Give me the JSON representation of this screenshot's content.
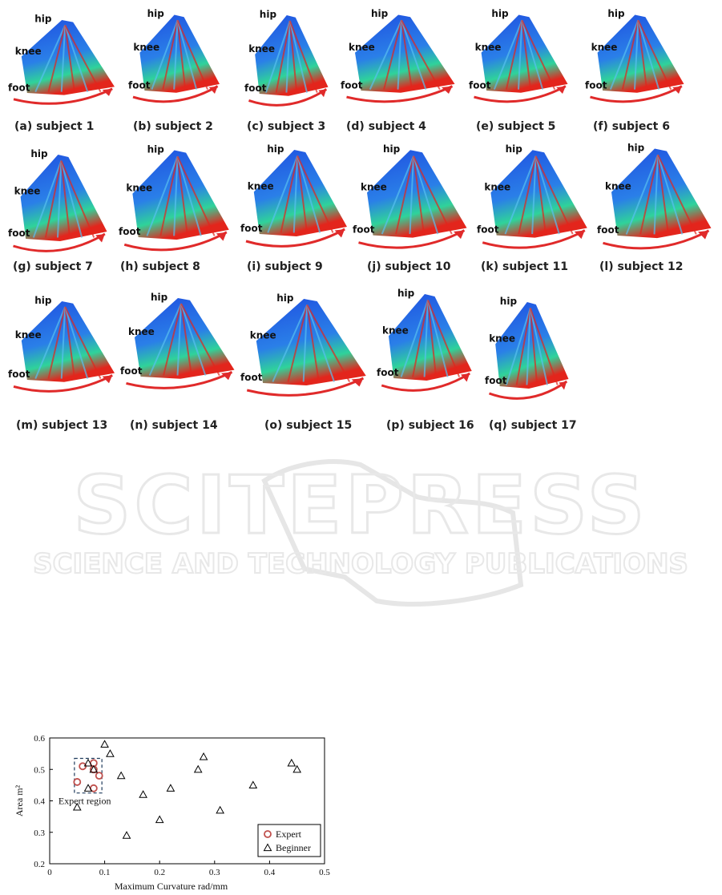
{
  "figure": {
    "joint_labels": {
      "hip": "hip",
      "knee": "knee",
      "foot": "foot"
    },
    "panels": [
      {
        "caption": "(a) subject 1"
      },
      {
        "caption": "(b) subject 2"
      },
      {
        "caption": "(c) subject 3"
      },
      {
        "caption": "(d) subject 4"
      },
      {
        "caption": "(e) subject 5"
      },
      {
        "caption": "(f) subject 6"
      },
      {
        "caption": "(g) subject 7"
      },
      {
        "caption": "(h) subject 8"
      },
      {
        "caption": "(i) subject 9"
      },
      {
        "caption": "(j) subject 10"
      },
      {
        "caption": "(k) subject 11"
      },
      {
        "caption": "(l) subject 12"
      },
      {
        "caption": "(m) subject 13"
      },
      {
        "caption": "(n) subject 14"
      },
      {
        "caption": "(o) subject 15"
      },
      {
        "caption": "(p) subject 16"
      },
      {
        "caption": "(q) subject 17"
      }
    ]
  },
  "watermark": {
    "line1": "SCITEPRESS",
    "line2": "SCIENCE AND TECHNOLOGY PUBLICATIONS"
  },
  "colors": {
    "surface_blue": "#1f4fe0",
    "surface_green": "#2fd39a",
    "surface_red": "#e3251c",
    "arrow_red": "#e02a2a",
    "expert_marker": "#c0504d",
    "region_box": "#1f3b5c"
  },
  "chart_data": {
    "type": "scatter",
    "title": "",
    "xlabel": "Maximum Curvature   rad/mm",
    "ylabel": "Area  m²",
    "xlim": [
      0,
      0.5
    ],
    "ylim": [
      0.2,
      0.6
    ],
    "xticks": [
      "0",
      "0.1",
      "0.2",
      "0.3",
      "0.4",
      "0.5"
    ],
    "yticks": [
      "0.2",
      "0.3",
      "0.4",
      "0.5",
      "0.6"
    ],
    "legend_position": "bottom-right",
    "annotation": "Expert region",
    "expert_region": {
      "x": [
        0.045,
        0.095
      ],
      "y": [
        0.425,
        0.535
      ]
    },
    "series": [
      {
        "name": "Expert",
        "marker": "circle",
        "x": [
          0.05,
          0.06,
          0.08,
          0.08,
          0.09,
          0.08
        ],
        "y": [
          0.46,
          0.51,
          0.52,
          0.5,
          0.48,
          0.44
        ]
      },
      {
        "name": "Beginner",
        "marker": "triangle",
        "x": [
          0.05,
          0.07,
          0.07,
          0.08,
          0.1,
          0.11,
          0.13,
          0.14,
          0.17,
          0.2,
          0.22,
          0.27,
          0.28,
          0.31,
          0.37,
          0.44,
          0.45
        ],
        "y": [
          0.38,
          0.52,
          0.44,
          0.5,
          0.58,
          0.55,
          0.48,
          0.29,
          0.42,
          0.34,
          0.44,
          0.5,
          0.54,
          0.37,
          0.45,
          0.52,
          0.5
        ]
      }
    ]
  }
}
